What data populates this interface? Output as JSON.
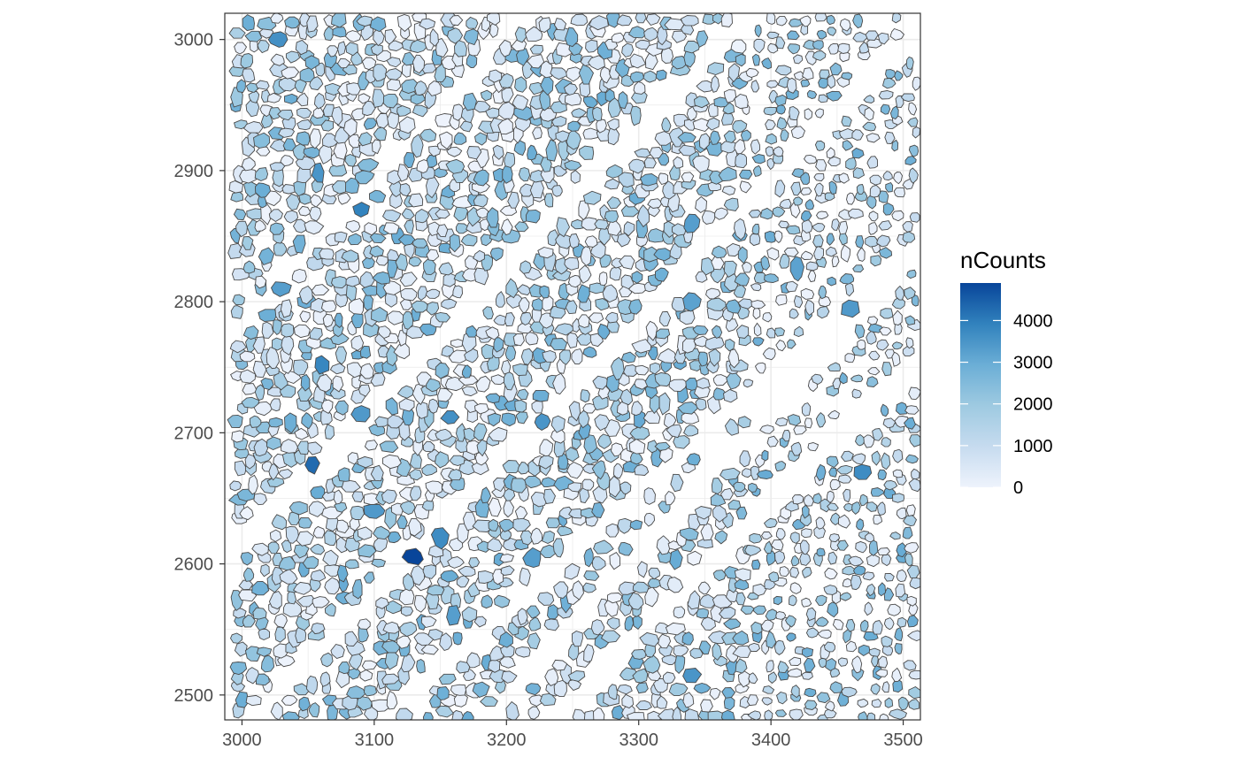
{
  "chart_data": {
    "type": "spatial-polygon-map",
    "xlim": [
      2987,
      3513
    ],
    "ylim": [
      2481,
      3020
    ],
    "x_ticks": [
      3000,
      3100,
      3200,
      3300,
      3400,
      3500
    ],
    "y_ticks": [
      2500,
      2600,
      2700,
      2800,
      2900,
      3000
    ],
    "x_tick_labels": [
      "3000",
      "3100",
      "3200",
      "3300",
      "3400",
      "3500"
    ],
    "y_tick_labels": [
      "2500",
      "2600",
      "2700",
      "2800",
      "2900",
      "3000"
    ],
    "grid": true,
    "theme": "bw",
    "fill_variable": "nCounts",
    "legend": {
      "title": "nCounts",
      "placement": "right",
      "range": [
        0,
        4900
      ],
      "breaks": [
        0,
        1000,
        2000,
        3000,
        4000
      ],
      "break_labels": [
        "0",
        "1000",
        "2000",
        "3000",
        "4000"
      ],
      "low_color": "#eef3fc",
      "high_color": "#08459a"
    },
    "cell_outline_color": "#4a4a4a",
    "highlighted_cells": [
      {
        "x": 3130,
        "y": 2605,
        "nCounts": 4900
      },
      {
        "x": 3053,
        "y": 2676,
        "nCounts": 4300
      },
      {
        "x": 3090,
        "y": 2870,
        "nCounts": 3900
      },
      {
        "x": 3028,
        "y": 3000,
        "nCounts": 3600
      },
      {
        "x": 3058,
        "y": 2898,
        "nCounts": 3500
      },
      {
        "x": 3060,
        "y": 2752,
        "nCounts": 3800
      },
      {
        "x": 3030,
        "y": 2810,
        "nCounts": 3300
      },
      {
        "x": 3150,
        "y": 2620,
        "nCounts": 3700
      },
      {
        "x": 3470,
        "y": 2670,
        "nCounts": 3700
      },
      {
        "x": 3340,
        "y": 2515,
        "nCounts": 3500
      },
      {
        "x": 3158,
        "y": 2712,
        "nCounts": 3600
      },
      {
        "x": 3227,
        "y": 2708,
        "nCounts": 3500
      },
      {
        "x": 3090,
        "y": 2715,
        "nCounts": 3400
      },
      {
        "x": 3160,
        "y": 2560,
        "nCounts": 3300
      },
      {
        "x": 3460,
        "y": 2795,
        "nCounts": 3400
      },
      {
        "x": 3340,
        "y": 2860,
        "nCounts": 3300
      },
      {
        "x": 3420,
        "y": 2825,
        "nCounts": 3200
      },
      {
        "x": 3220,
        "y": 2605,
        "nCounts": 3300
      },
      {
        "x": 3100,
        "y": 2640,
        "nCounts": 3400
      },
      {
        "x": 3340,
        "y": 2800,
        "nCounts": 3200
      }
    ],
    "cells_note": "The remaining roughly 1,700 cells have nCounts of about 0 to 3,000 and are drawn at similar density across the whole panel, apart from blank diagonal gaps."
  }
}
